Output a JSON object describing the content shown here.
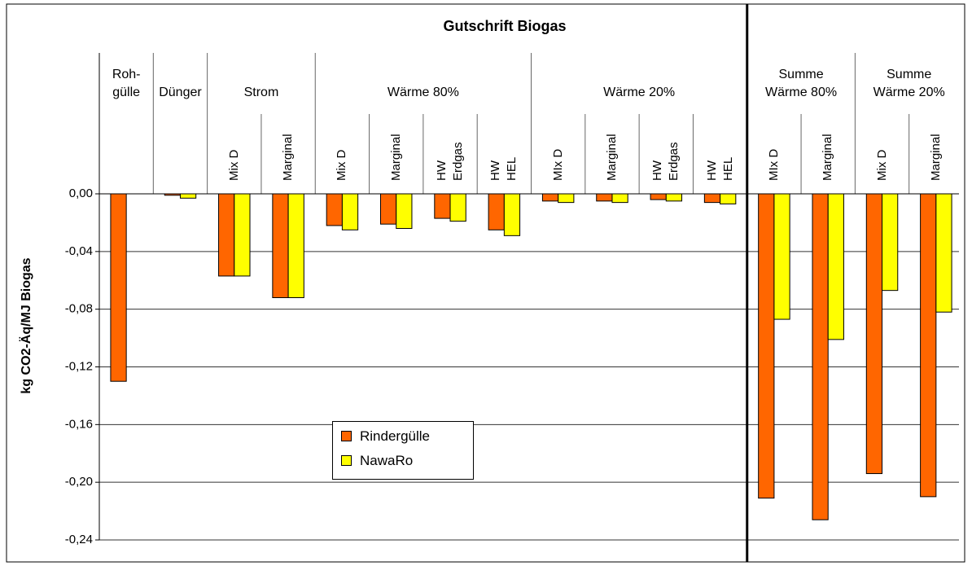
{
  "chart_data": {
    "type": "bar",
    "title": "Gutschrift Biogas",
    "y_label": "kg CO2-Äq/MJ Biogas",
    "category_groups": [
      "Roh-\ngülle",
      "Dünger",
      "Strom",
      "Strom",
      "Wärme 80%",
      "Wärme 80%",
      "Wärme 80%",
      "Wärme 80%",
      "Wärme 20%",
      "Wärme 20%",
      "Wärme 20%",
      "Wärme 20%",
      "Summe\nWärme 80%",
      "Summe\nWärme 80%",
      "Summe\nWärme 20%",
      "Summe\nWärme 20%"
    ],
    "categories": [
      null,
      null,
      "Mix D",
      "Marginal",
      "Mix D",
      "Marginal",
      "HW\nErdgas",
      "HW\nHEL",
      "MIx D",
      "Marginal",
      "HW\nErdgas",
      "HW\nHEL",
      "MIx D",
      "Marginal",
      "Mix D",
      "Marginal"
    ],
    "series": [
      {
        "name": "Rindergülle",
        "color": "#ff6600",
        "values": [
          -0.13,
          -0.001,
          -0.057,
          -0.072,
          -0.022,
          -0.021,
          -0.017,
          -0.025,
          -0.005,
          -0.005,
          -0.004,
          -0.006,
          -0.211,
          -0.226,
          -0.194,
          -0.21
        ]
      },
      {
        "name": "NawaRo",
        "color": "#ffff00",
        "values": [
          null,
          -0.003,
          -0.057,
          -0.072,
          -0.025,
          -0.024,
          -0.019,
          -0.029,
          -0.006,
          -0.006,
          -0.005,
          -0.007,
          -0.087,
          -0.101,
          -0.067,
          -0.082
        ]
      }
    ],
    "ylim": [
      -0.24,
      0
    ],
    "yticks": [
      {
        "value": 0,
        "label": "0,00"
      },
      {
        "value": -0.04,
        "label": "-0,04"
      },
      {
        "value": -0.08,
        "label": "-0,08"
      },
      {
        "value": -0.12,
        "label": "-0,12"
      },
      {
        "value": -0.16,
        "label": "-0,16"
      },
      {
        "value": -0.2,
        "label": "-0,20"
      },
      {
        "value": -0.24,
        "label": "-0,24"
      }
    ],
    "grid": true
  }
}
